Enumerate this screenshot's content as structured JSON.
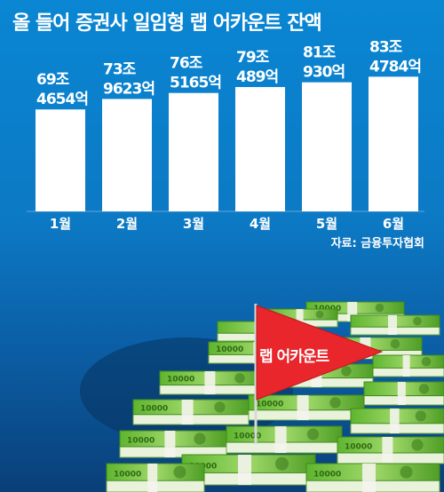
{
  "title": "올 들어 증권사 일임형 랩 어카운트 잔액",
  "source": "자료: 금융투자협회",
  "flag_label": "랩 어카운트",
  "banknote_denomination": "10000",
  "colors": {
    "background": "#0a86d3",
    "bars": "#ffffff",
    "text": "#ffffff",
    "flag": "#e8262b",
    "money": "#7ec843"
  },
  "chart_data": {
    "type": "bar",
    "categories": [
      "1월",
      "2월",
      "3월",
      "4월",
      "5월",
      "6월"
    ],
    "values": [
      694654,
      739623,
      765165,
      790489,
      810930,
      834784
    ],
    "value_unit": "억",
    "value_labels": [
      [
        "69조",
        "4654억"
      ],
      [
        "73조",
        "9623억"
      ],
      [
        "76조",
        "5165억"
      ],
      [
        "79조",
        "489억"
      ],
      [
        "81조",
        "930억"
      ],
      [
        "83조",
        "4784억"
      ]
    ],
    "title": "올 들어 증권사 일임형 랩 어카운트 잔액",
    "xlabel": "",
    "ylabel": "",
    "grid": false
  }
}
